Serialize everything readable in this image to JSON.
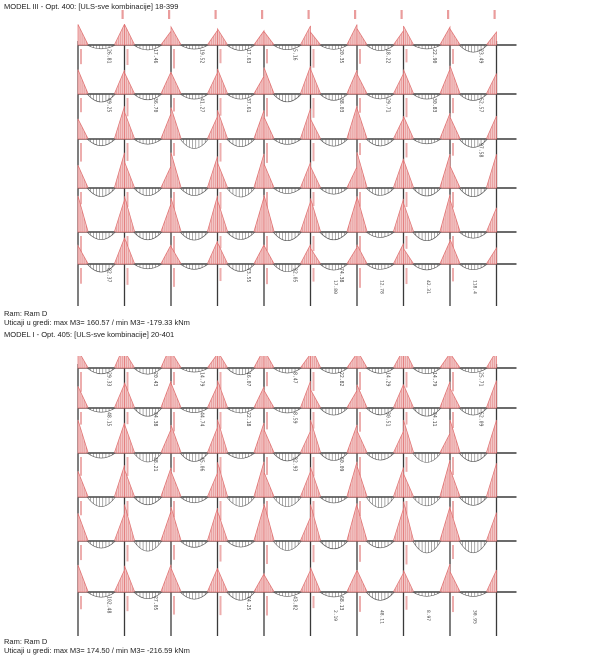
{
  "colors": {
    "frame": "#3a3a3a",
    "moment_neg": "#e07070",
    "moment_neg_fill": "#f2c6c6",
    "moment_pos": "#555555",
    "label_red": "#d84a4a",
    "label_dark": "#444444"
  },
  "model1": {
    "title": "MODEL III - Opt. 400: [ULS-sve kombinacije] 18-399",
    "frame_name": "Ram: Ram D",
    "extremes": "Uticaji u gredi: max M3= 160.57 / min M3= -179.33 kNm",
    "span_labels": [
      [
        "26.81",
        "17.46",
        "19.52",
        "17.63",
        "5.16",
        "20.35",
        "18.22",
        "22.90",
        "23.49"
      ],
      [
        "49.25",
        "36.70",
        "41.27",
        "37.61",
        "",
        "38.03",
        "29.71",
        "30.83",
        "52.57"
      ],
      [
        "",
        "",
        "",
        "",
        "",
        "",
        "",
        "",
        "97.58"
      ],
      [
        "",
        "",
        "",
        "",
        "",
        "",
        "",
        "",
        ""
      ],
      [
        "",
        "",
        "",
        "",
        "",
        "",
        "",
        "",
        ""
      ],
      [
        "82.37",
        "",
        "",
        "73.55",
        "32.05",
        "74.38",
        "",
        "",
        ""
      ]
    ],
    "end_labels": [
      "17.80",
      "12.78",
      "42.31",
      "118.4"
    ]
  },
  "model2": {
    "title": "MODEL I - Opt. 405: [ULS-sve kombinacije] 20-401",
    "frame_name": "Ram: Ram D",
    "extremes": "Uticaji u gredi: max M3= 174.50 / min M3= -216.59 kNm",
    "span_labels": [
      [
        "29.33",
        "20.43",
        "14.79",
        "16.07",
        "8.47",
        "22.82",
        "14.29",
        "14.79",
        "25.71"
      ],
      [
        "48.15",
        "34.38",
        "44.74",
        "22.18",
        "8.59",
        "",
        "30.51",
        "34.11",
        "52.09"
      ],
      [
        "",
        "38.21",
        "45.06",
        "",
        "32.93",
        "60.09",
        "",
        "",
        ""
      ],
      [
        "",
        "",
        "",
        "",
        "",
        "",
        "",
        "",
        ""
      ],
      [
        "",
        "",
        "",
        "",
        "",
        "",
        "",
        "",
        ""
      ],
      [
        "102.48",
        "27.05",
        "",
        "74.25",
        "43.82",
        "68.13",
        "",
        "",
        ""
      ]
    ],
    "end_labels": [
      "2.19",
      "48.11",
      "8.97",
      "30.95"
    ]
  }
}
